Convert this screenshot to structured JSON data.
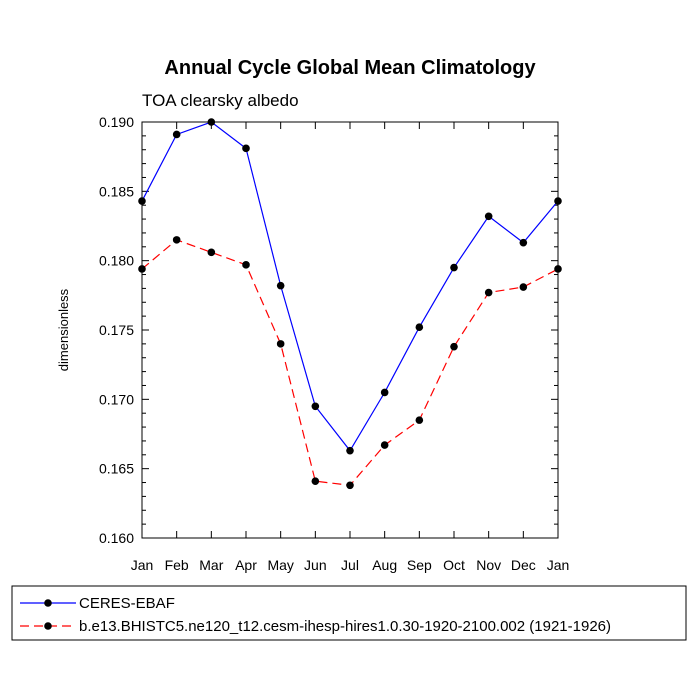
{
  "chart_data": {
    "type": "line",
    "title": "Annual Cycle Global Mean Climatology",
    "subtitle": "TOA clearsky albedo",
    "xlabel": "",
    "ylabel": "dimensionless",
    "categories": [
      "Jan",
      "Feb",
      "Mar",
      "Apr",
      "May",
      "Jun",
      "Jul",
      "Aug",
      "Sep",
      "Oct",
      "Nov",
      "Dec",
      "Jan"
    ],
    "ylim": [
      0.16,
      0.19
    ],
    "yticks": [
      "0.160",
      "0.165",
      "0.170",
      "0.175",
      "0.180",
      "0.185",
      "0.190"
    ],
    "series": [
      {
        "name": "CERES-EBAF",
        "color": "#0000ff",
        "dash": "solid",
        "values": [
          0.1843,
          0.1891,
          0.19,
          0.1881,
          0.1782,
          0.1695,
          0.1663,
          0.1705,
          0.1752,
          0.1795,
          0.1832,
          0.1813,
          0.1843
        ]
      },
      {
        "name": "b.e13.BHISTC5.ne120_t12.cesm-ihesp-hires1.0.30-1920-2100.002 (1921-1926)",
        "color": "#ff0000",
        "dash": "dashed",
        "values": [
          0.1794,
          0.1815,
          0.1806,
          0.1797,
          0.174,
          0.1641,
          0.1638,
          0.1667,
          0.1685,
          0.1738,
          0.1777,
          0.1781,
          0.1794
        ]
      }
    ]
  }
}
